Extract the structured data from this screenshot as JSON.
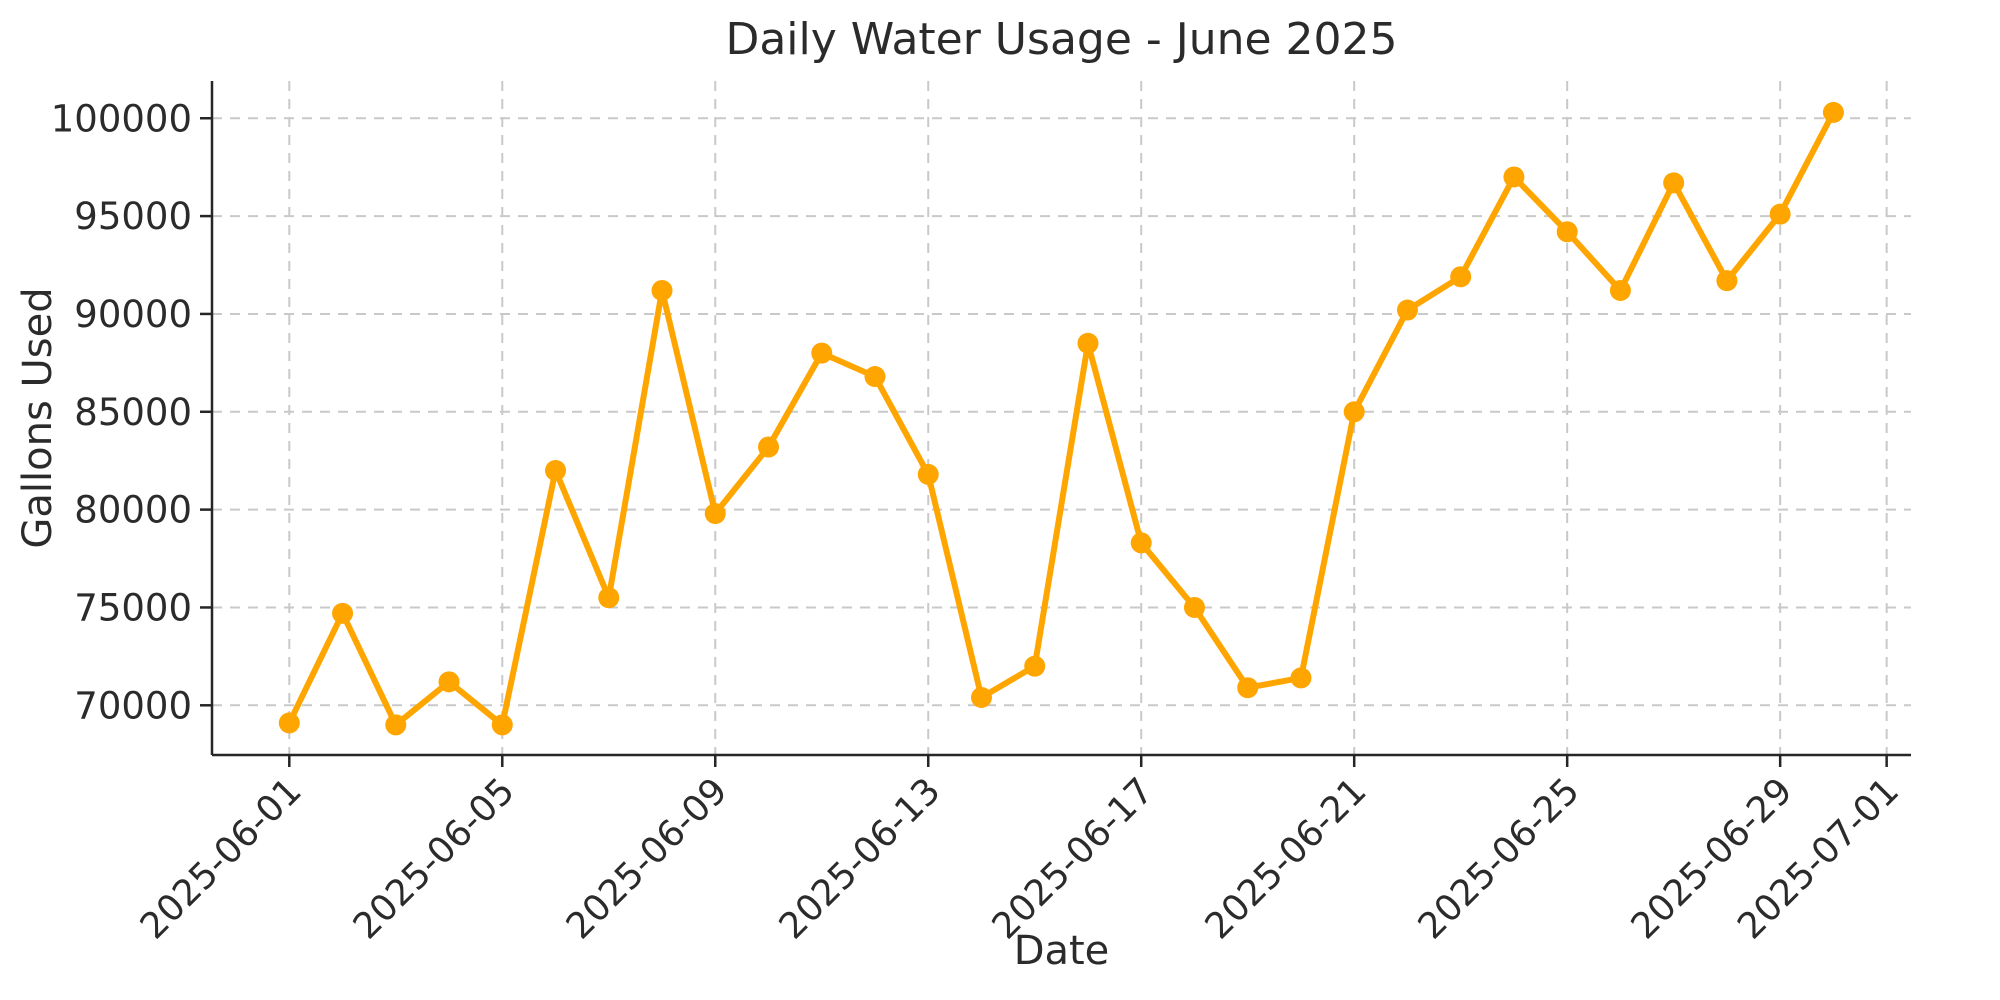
{
  "colors": {
    "line": "#FFA500",
    "marker": "#FFA500",
    "grid": "#c9c9c9",
    "axis": "#262626",
    "text": "#2b2b2b",
    "background": "#ffffff"
  },
  "chart_data": {
    "type": "line",
    "title": "Daily Water Usage - June 2025",
    "xlabel": "Date",
    "ylabel": "Gallons Used",
    "x": [
      "2025-06-01",
      "2025-06-02",
      "2025-06-03",
      "2025-06-04",
      "2025-06-05",
      "2025-06-06",
      "2025-06-07",
      "2025-06-08",
      "2025-06-09",
      "2025-06-10",
      "2025-06-11",
      "2025-06-12",
      "2025-06-13",
      "2025-06-14",
      "2025-06-15",
      "2025-06-16",
      "2025-06-17",
      "2025-06-18",
      "2025-06-19",
      "2025-06-20",
      "2025-06-21",
      "2025-06-22",
      "2025-06-23",
      "2025-06-24",
      "2025-06-25",
      "2025-06-26",
      "2025-06-27",
      "2025-06-28",
      "2025-06-29",
      "2025-06-30"
    ],
    "values": [
      69100,
      74700,
      69000,
      71200,
      69000,
      82000,
      75500,
      91200,
      79800,
      83200,
      88000,
      86800,
      81800,
      70400,
      72000,
      88500,
      78300,
      75000,
      70900,
      71400,
      85000,
      90200,
      91900,
      97000,
      94200,
      91200,
      96700,
      91700,
      95100,
      100300
    ],
    "yticks": [
      70000,
      75000,
      80000,
      85000,
      90000,
      95000,
      100000
    ],
    "xticks": [
      {
        "index": 0,
        "label": "2025-06-01"
      },
      {
        "index": 4,
        "label": "2025-06-05"
      },
      {
        "index": 8,
        "label": "2025-06-09"
      },
      {
        "index": 12,
        "label": "2025-06-13"
      },
      {
        "index": 16,
        "label": "2025-06-17"
      },
      {
        "index": 20,
        "label": "2025-06-21"
      },
      {
        "index": 24,
        "label": "2025-06-25"
      },
      {
        "index": 28,
        "label": "2025-06-29"
      },
      {
        "index": 30,
        "label": "2025-07-01"
      }
    ],
    "ylim": [
      67500,
      101900
    ],
    "grid": true,
    "grid_style": "dashed",
    "x_tick_rotation": 45,
    "legend": "none",
    "marker": "circle"
  }
}
